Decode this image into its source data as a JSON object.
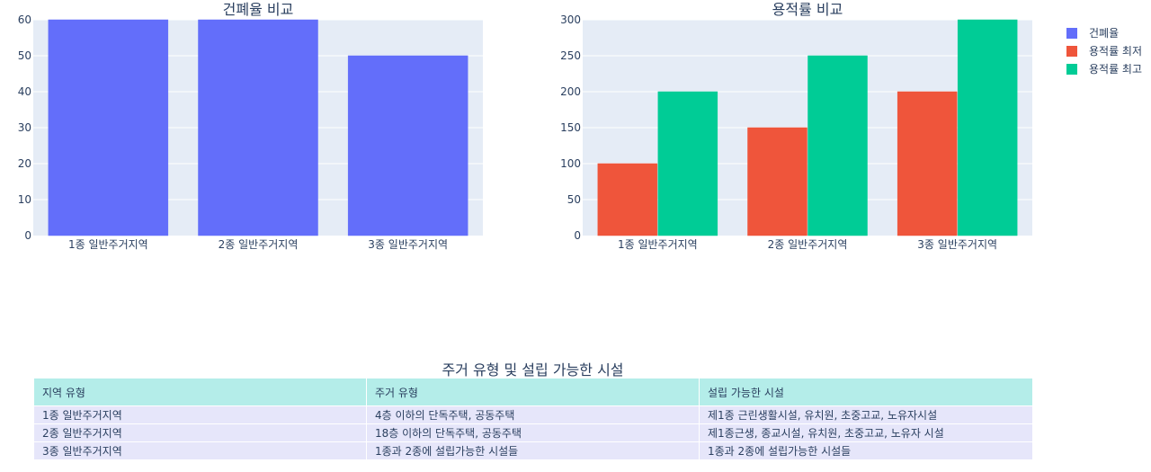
{
  "chart_data": [
    {
      "type": "bar",
      "title": "건폐율 비교",
      "categories": [
        "1종 일반주거지역",
        "2종 일반주거지역",
        "3종 일반주거지역"
      ],
      "series": [
        {
          "name": "건폐율",
          "values": [
            60,
            60,
            50
          ],
          "color": "#636efa"
        }
      ],
      "ylim": [
        0,
        60
      ],
      "yticks": [
        0,
        10,
        20,
        30,
        40,
        50,
        60
      ],
      "xlabel": "",
      "ylabel": "",
      "grid": true
    },
    {
      "type": "bar",
      "title": "용적률 비교",
      "categories": [
        "1종 일반주거지역",
        "2종 일반주거지역",
        "3종 일반주거지역"
      ],
      "series": [
        {
          "name": "용적률 최저",
          "values": [
            100,
            150,
            200
          ],
          "color": "#ef553b"
        },
        {
          "name": "용적률 최고",
          "values": [
            200,
            250,
            300
          ],
          "color": "#00cc96"
        }
      ],
      "ylim": [
        0,
        300
      ],
      "yticks": [
        0,
        50,
        100,
        150,
        200,
        250,
        300
      ],
      "xlabel": "",
      "ylabel": "",
      "grid": true
    }
  ],
  "legend": {
    "placement": "top-right",
    "items": [
      {
        "label": "건폐율",
        "color": "#636efa"
      },
      {
        "label": "용적률 최저",
        "color": "#ef553b"
      },
      {
        "label": "용적률 최고",
        "color": "#00cc96"
      }
    ]
  },
  "table": {
    "title": "주거 유형 및 설립 가능한 시설",
    "headers": [
      "지역 유형",
      "주거 유형",
      "설립 가능한 시설"
    ],
    "rows": [
      [
        "1종 일반주거지역",
        "4층 이하의 단독주택, 공동주택",
        "제1종 근린생활시설, 유치원, 초중고교, 노유자시설"
      ],
      [
        "2종 일반주거지역",
        "18층 이하의 단독주택, 공동주택",
        "제1종근생, 종교시설, 유치원, 초중고교, 노유자 시설"
      ],
      [
        "3종 일반주거지역",
        "1종과 2종에 설립가능한 시설들",
        "1종과 2종에 설립가능한 시설들"
      ]
    ]
  },
  "colors": {
    "plot_bg": "#e5ecf6",
    "grid": "#ffffff",
    "header_bg": "#b4ede9",
    "cell_bg": "#e6e6fa"
  }
}
